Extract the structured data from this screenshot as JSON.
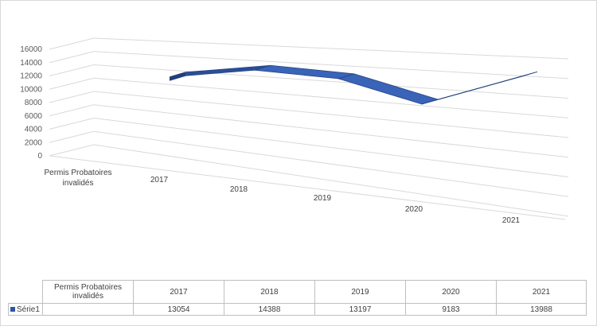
{
  "chart_data": {
    "type": "line",
    "style": "3d-ribbon",
    "categories": [
      "Permis Probatoires invalidés",
      "2017",
      "2018",
      "2019",
      "2020",
      "2021"
    ],
    "series": [
      {
        "name": "Série1",
        "values": [
          null,
          13054,
          14388,
          13197,
          9183,
          13988
        ],
        "color": "#2e55a6"
      }
    ],
    "yticks": [
      0,
      2000,
      4000,
      6000,
      8000,
      10000,
      12000,
      14000,
      16000
    ],
    "ylim": [
      0,
      16000
    ],
    "title": "",
    "xlabel": "",
    "ylabel": "",
    "grid": true,
    "data_table": true
  },
  "table": {
    "headers": [
      "Permis Probatoires invalidés",
      "2017",
      "2018",
      "2019",
      "2020",
      "2021"
    ],
    "series_label": "Série1",
    "cells": [
      "",
      "13054",
      "14388",
      "13197",
      "9183",
      "13988"
    ]
  }
}
